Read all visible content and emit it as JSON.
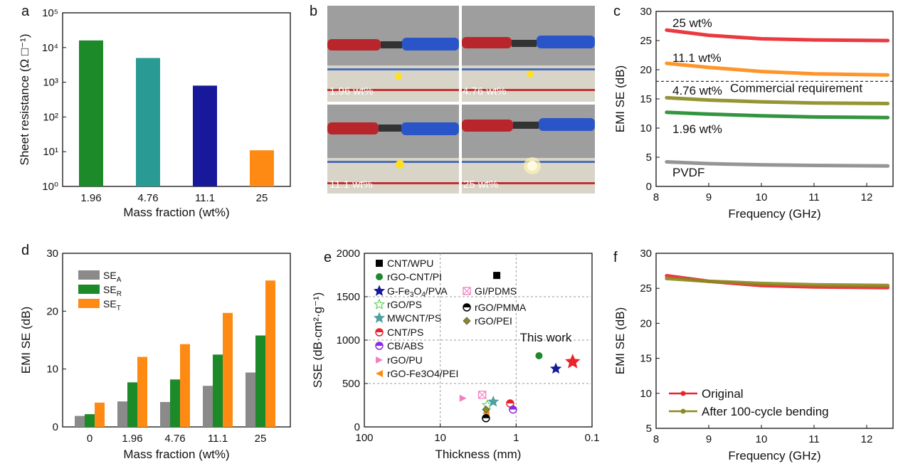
{
  "panels": {
    "a": {
      "letter": "a"
    },
    "b": {
      "letter": "b"
    },
    "c": {
      "letter": "c"
    },
    "d": {
      "letter": "d"
    },
    "e": {
      "letter": "e"
    },
    "f": {
      "letter": "f"
    }
  },
  "colors": {
    "green": "#1d8a2a",
    "teal": "#2a9a95",
    "navy": "#17189a",
    "orange": "#ff8a13",
    "red": "#e8242a",
    "olive": "#8a8a20",
    "gray": "#8a8a8a",
    "purple": "#8a2be2",
    "pink": "#f080c0"
  },
  "photos": {
    "labels": [
      "1.96 wt%",
      "4.76 wt%",
      "11.1 wt%",
      "25 wt%"
    ]
  },
  "chart_data": [
    {
      "panel": "a",
      "type": "bar",
      "title": "",
      "xlabel": "Mass fraction (wt%)",
      "ylabel": "Sheet resistance (Ω □⁻¹)",
      "yscale": "log",
      "ylim": [
        1,
        100000
      ],
      "categories": [
        "1.96",
        "4.76",
        "11.1",
        "25"
      ],
      "values": [
        16000,
        5000,
        800,
        11
      ],
      "bar_colors": [
        "#1d8a2a",
        "#2a9a95",
        "#17189a",
        "#ff8a13"
      ],
      "ytick_labels": [
        "10⁰",
        "10¹",
        "10²",
        "10³",
        "10⁴",
        "10⁵"
      ]
    },
    {
      "panel": "c",
      "type": "line",
      "xlabel": "Frequency (GHz)",
      "ylabel": "EMI SE (dB)",
      "xlim": [
        8,
        12.5
      ],
      "ylim": [
        0,
        30
      ],
      "xticks": [
        8,
        9,
        10,
        11,
        12
      ],
      "yticks": [
        0,
        5,
        10,
        15,
        20,
        25,
        30
      ],
      "reference_line": {
        "y": 18,
        "label": "Commercial requirement"
      },
      "series": [
        {
          "name": "25 wt%",
          "color": "#e8242a",
          "x": [
            8.2,
            9,
            10,
            11,
            12.4
          ],
          "y": [
            26.8,
            25.9,
            25.3,
            25.1,
            25.0
          ]
        },
        {
          "name": "11.1 wt%",
          "color": "#ff8a13",
          "x": [
            8.2,
            9,
            10,
            11,
            12.4
          ],
          "y": [
            21.1,
            20.4,
            19.7,
            19.3,
            19.1
          ]
        },
        {
          "name": "4.76 wt%",
          "color": "#8a8a20",
          "x": [
            8.2,
            9,
            10,
            11,
            12.4
          ],
          "y": [
            15.2,
            14.8,
            14.5,
            14.3,
            14.2
          ]
        },
        {
          "name": "1.96 wt%",
          "color": "#1d8a2a",
          "x": [
            8.2,
            9,
            10,
            11,
            12.4
          ],
          "y": [
            12.7,
            12.4,
            12.1,
            11.9,
            11.8
          ]
        },
        {
          "name": "PVDF",
          "color": "#8a8a8a",
          "x": [
            8.2,
            9,
            10,
            11,
            12.4
          ],
          "y": [
            4.2,
            3.9,
            3.7,
            3.6,
            3.5
          ]
        }
      ]
    },
    {
      "panel": "d",
      "type": "bar",
      "xlabel": "Mass fraction (wt%)",
      "ylabel": "EMI SE (dB)",
      "ylim": [
        0,
        30
      ],
      "yticks": [
        0,
        10,
        20,
        30
      ],
      "categories": [
        "0",
        "1.96",
        "4.76",
        "11.1",
        "25"
      ],
      "series": [
        {
          "name": "SE",
          "sub": "A",
          "color": "#8a8a8a",
          "values": [
            1.9,
            4.4,
            4.3,
            7.1,
            9.4
          ]
        },
        {
          "name": "SE",
          "sub": "R",
          "color": "#1d8a2a",
          "values": [
            2.2,
            7.7,
            8.2,
            12.5,
            15.8
          ]
        },
        {
          "name": "SE",
          "sub": "T",
          "color": "#ff8a13",
          "values": [
            4.2,
            12.1,
            14.3,
            19.7,
            25.3
          ]
        }
      ]
    },
    {
      "panel": "e",
      "type": "scatter",
      "xlabel": "Thickness (mm)",
      "ylabel": "SSE (dB·cm²·g⁻¹)",
      "xscale": "log-reversed",
      "xlim": [
        100,
        0.1
      ],
      "ylim": [
        0,
        2000
      ],
      "xtick_labels": [
        "100",
        "10",
        "1",
        "0.1"
      ],
      "yticks": [
        0,
        500,
        1000,
        1500,
        2000
      ],
      "annotation": "This work",
      "series": [
        {
          "name": "CNT/WPU",
          "marker": "square",
          "color": "#000000",
          "x": 1.8,
          "y": 1745
        },
        {
          "name": "rGO-CNT/PI",
          "marker": "circle",
          "color": "#1d8a2a",
          "x": 0.5,
          "y": 820
        },
        {
          "name": "G-Fe3O4/PVA",
          "label_sub": "3",
          "label_sub2": "4",
          "marker": "star",
          "color": "#17189a",
          "x": 0.3,
          "y": 670
        },
        {
          "name": "rGO/PS",
          "marker": "star-open",
          "color": "#5fd35f",
          "x": 2.4,
          "y": 250
        },
        {
          "name": "MWCNT/PS",
          "marker": "star",
          "color": "#4fa0a0",
          "x": 2.0,
          "y": 290
        },
        {
          "name": "CNT/PS",
          "marker": "half-circle",
          "color": "#e8242a",
          "x": 1.2,
          "y": 270
        },
        {
          "name": "CB/ABS",
          "marker": "half-circle",
          "color": "#8a2be2",
          "x": 1.1,
          "y": 200
        },
        {
          "name": "rGO/PU",
          "marker": "triangle-right",
          "color": "#f080c0",
          "x": 5.0,
          "y": 330
        },
        {
          "name": "rGO-Fe3O4/PEI",
          "marker": "triangle-left",
          "color": "#ff8a13",
          "x": 2.5,
          "y": 160
        },
        {
          "name": "GI/PDMS",
          "marker": "square-x",
          "color": "#f080c0",
          "x": 2.8,
          "y": 370
        },
        {
          "name": "rGO/PMMA",
          "marker": "half-circle",
          "color": "#000000",
          "x": 2.5,
          "y": 100
        },
        {
          "name": "rGO/PEI",
          "marker": "diamond",
          "color": "#8a8a20",
          "x": 2.5,
          "y": 200
        },
        {
          "name": "This work",
          "marker": "star",
          "color": "#e8242a",
          "x": 0.18,
          "y": 750
        }
      ]
    },
    {
      "panel": "f",
      "type": "line",
      "xlabel": "Frequency (GHz)",
      "ylabel": "EMI SE (dB)",
      "xlim": [
        8,
        12.5
      ],
      "ylim": [
        5,
        30
      ],
      "xticks": [
        8,
        9,
        10,
        11,
        12
      ],
      "yticks": [
        5,
        10,
        15,
        20,
        25,
        30
      ],
      "series": [
        {
          "name": "Original",
          "color": "#e8242a",
          "x": [
            8.2,
            9,
            10,
            11,
            12.4
          ],
          "y": [
            26.8,
            26.0,
            25.4,
            25.2,
            25.1
          ]
        },
        {
          "name": "After 100-cycle bending",
          "color": "#8a8a20",
          "x": [
            8.2,
            9,
            10,
            11,
            12.4
          ],
          "y": [
            26.4,
            26.0,
            25.7,
            25.5,
            25.4
          ]
        }
      ]
    }
  ]
}
